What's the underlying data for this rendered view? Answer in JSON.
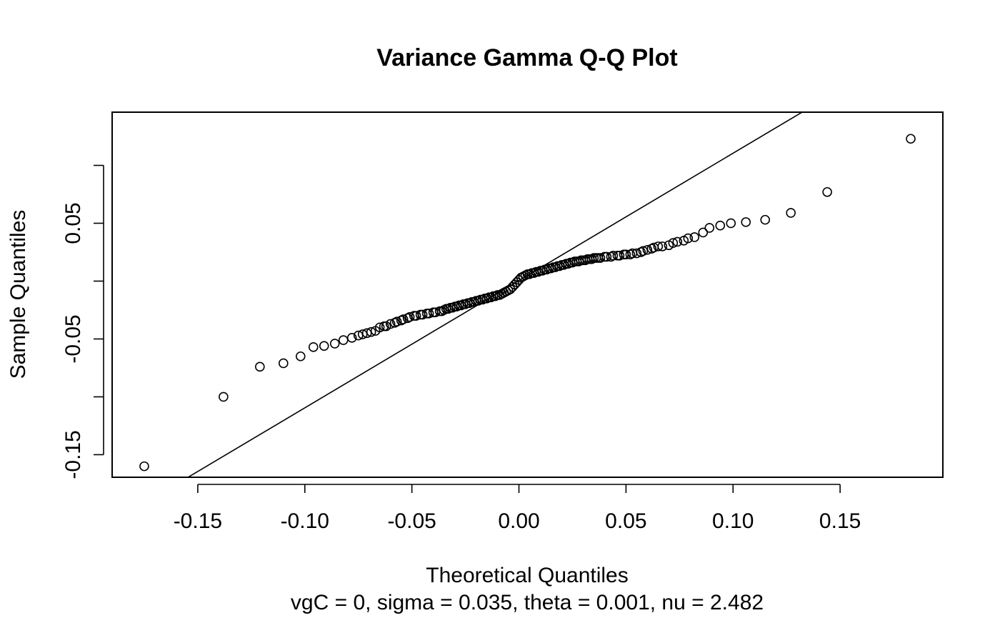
{
  "chart_data": {
    "type": "scatter",
    "title": "Variance Gamma Q-Q Plot",
    "xlabel": "Theoretical Quantiles",
    "subtitle": "vgC = 0, sigma = 0.035, theta = 0.001, nu = 2.482",
    "ylabel": "Sample Quantiles",
    "xlim": [
      -0.19,
      0.198
    ],
    "ylim": [
      -0.1695,
      0.146
    ],
    "x_ticks": [
      -0.15,
      -0.1,
      -0.05,
      0.0,
      0.05,
      0.1,
      0.15
    ],
    "x_tick_labels": [
      "-0.15",
      "-0.10",
      "-0.05",
      "0.00",
      "0.05",
      "0.10",
      "0.15"
    ],
    "y_ticks": [
      -0.15,
      -0.1,
      -0.05,
      0.0,
      0.05,
      0.1
    ],
    "y_tick_labels": [
      "-0.15",
      "",
      "-0.05",
      "",
      "0.05",
      ""
    ],
    "grid": false,
    "reference_line": {
      "intercept": 0.0005,
      "slope": 1.1
    },
    "points": {
      "x": [
        -0.175,
        -0.138,
        -0.121,
        -0.11,
        -0.102,
        -0.096,
        -0.091,
        -0.086,
        -0.082,
        -0.078,
        -0.075,
        -0.073,
        -0.071,
        -0.069,
        -0.067,
        -0.065,
        -0.063,
        -0.062,
        -0.06,
        -0.058,
        -0.057,
        -0.055,
        -0.054,
        -0.052,
        -0.051,
        -0.049,
        -0.048,
        -0.046,
        -0.045,
        -0.043,
        -0.042,
        -0.04,
        -0.039,
        -0.037,
        -0.036,
        -0.035,
        -0.034,
        -0.033,
        -0.032,
        -0.031,
        -0.03,
        -0.029,
        -0.028,
        -0.027,
        -0.026,
        -0.025,
        -0.024,
        -0.023,
        -0.022,
        -0.021,
        -0.02,
        -0.019,
        -0.018,
        -0.017,
        -0.016,
        -0.015,
        -0.014,
        -0.013,
        -0.012,
        -0.011,
        -0.01,
        -0.009,
        -0.008,
        -0.007,
        -0.006,
        -0.005,
        -0.004,
        -0.003,
        -0.002,
        -0.001,
        0.0,
        0.001,
        0.002,
        0.003,
        0.004,
        0.005,
        0.006,
        0.007,
        0.008,
        0.009,
        0.01,
        0.011,
        0.012,
        0.013,
        0.014,
        0.015,
        0.016,
        0.017,
        0.018,
        0.019,
        0.02,
        0.021,
        0.022,
        0.023,
        0.024,
        0.025,
        0.026,
        0.027,
        0.028,
        0.029,
        0.03,
        0.031,
        0.032,
        0.033,
        0.034,
        0.035,
        0.036,
        0.037,
        0.038,
        0.04,
        0.041,
        0.043,
        0.044,
        0.046,
        0.047,
        0.049,
        0.05,
        0.052,
        0.053,
        0.055,
        0.057,
        0.058,
        0.06,
        0.062,
        0.063,
        0.065,
        0.067,
        0.07,
        0.072,
        0.074,
        0.077,
        0.079,
        0.082,
        0.086,
        0.089,
        0.094,
        0.099,
        0.106,
        0.115,
        0.127,
        0.144,
        0.183
      ],
      "y": [
        -0.16,
        -0.1,
        -0.074,
        -0.071,
        -0.065,
        -0.057,
        -0.056,
        -0.054,
        -0.051,
        -0.049,
        -0.047,
        -0.046,
        -0.045,
        -0.044,
        -0.043,
        -0.04,
        -0.039,
        -0.039,
        -0.037,
        -0.036,
        -0.035,
        -0.034,
        -0.033,
        -0.032,
        -0.031,
        -0.03,
        -0.03,
        -0.029,
        -0.029,
        -0.028,
        -0.028,
        -0.027,
        -0.027,
        -0.026,
        -0.026,
        -0.025,
        -0.024,
        -0.024,
        -0.023,
        -0.023,
        -0.022,
        -0.022,
        -0.021,
        -0.021,
        -0.02,
        -0.02,
        -0.019,
        -0.019,
        -0.018,
        -0.018,
        -0.017,
        -0.017,
        -0.016,
        -0.016,
        -0.015,
        -0.015,
        -0.014,
        -0.014,
        -0.013,
        -0.013,
        -0.012,
        -0.012,
        -0.011,
        -0.01,
        -0.009,
        -0.008,
        -0.007,
        -0.005,
        -0.003,
        -0.001,
        0.001,
        0.003,
        0.004,
        0.005,
        0.006,
        0.006,
        0.007,
        0.007,
        0.008,
        0.008,
        0.009,
        0.009,
        0.01,
        0.01,
        0.011,
        0.011,
        0.012,
        0.012,
        0.013,
        0.013,
        0.014,
        0.014,
        0.015,
        0.015,
        0.016,
        0.016,
        0.017,
        0.017,
        0.017,
        0.018,
        0.018,
        0.018,
        0.019,
        0.019,
        0.019,
        0.02,
        0.02,
        0.02,
        0.02,
        0.021,
        0.021,
        0.021,
        0.022,
        0.022,
        0.022,
        0.023,
        0.023,
        0.023,
        0.024,
        0.024,
        0.025,
        0.026,
        0.027,
        0.028,
        0.029,
        0.03,
        0.03,
        0.031,
        0.033,
        0.034,
        0.035,
        0.037,
        0.038,
        0.042,
        0.046,
        0.048,
        0.05,
        0.051,
        0.053,
        0.059,
        0.077,
        0.123
      ]
    }
  }
}
